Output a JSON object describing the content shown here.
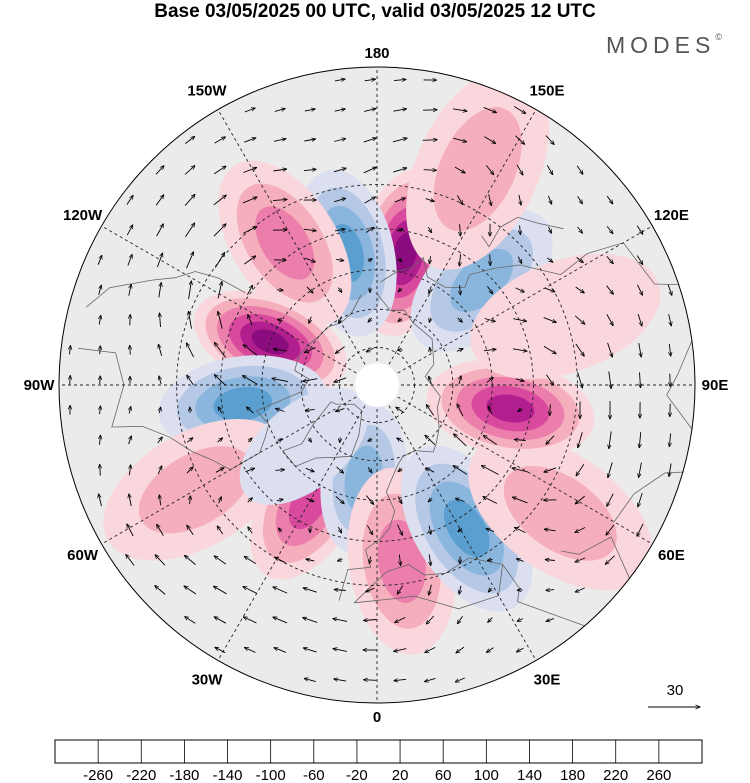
{
  "title": "Base 03/05/2025 00 UTC, valid 03/05/2025 12 UTC",
  "brand": "MODES",
  "brand_mark": "©",
  "map": {
    "projection": "north-polar-stereographic",
    "longitude_labels": [
      {
        "text": "180",
        "lon": 180
      },
      {
        "text": "150E",
        "lon": 150
      },
      {
        "text": "120E",
        "lon": 120
      },
      {
        "text": "90E",
        "lon": 90
      },
      {
        "text": "60E",
        "lon": 60
      },
      {
        "text": "30E",
        "lon": 30
      },
      {
        "text": "0",
        "lon": 0
      },
      {
        "text": "30W",
        "lon": -30
      },
      {
        "text": "60W",
        "lon": -60
      },
      {
        "text": "90W",
        "lon": -90
      },
      {
        "text": "120W",
        "lon": -120
      },
      {
        "text": "150W",
        "lon": -150
      }
    ],
    "latitude_circles": [
      80,
      70,
      60,
      50,
      40
    ],
    "anomaly_centers": [
      {
        "lon": 168,
        "lat": 55,
        "value": 240
      },
      {
        "lon": -167,
        "lat": 55,
        "value": -170
      },
      {
        "lon": -147,
        "lat": 47,
        "value": 130
      },
      {
        "lon": -112,
        "lat": 60,
        "value": 230
      },
      {
        "lon": -82,
        "lat": 55,
        "value": -150
      },
      {
        "lon": -60,
        "lat": 38,
        "value": 90
      },
      {
        "lon": -30,
        "lat": 55,
        "value": 170
      },
      {
        "lon": -8,
        "lat": 65,
        "value": -120
      },
      {
        "lon": 8,
        "lat": 45,
        "value": 130
      },
      {
        "lon": 32,
        "lat": 47,
        "value": -140
      },
      {
        "lon": 55,
        "lat": 35,
        "value": 80
      },
      {
        "lon": 80,
        "lat": 55,
        "value": 180
      },
      {
        "lon": 135,
        "lat": 52,
        "value": -110
      },
      {
        "lon": 110,
        "lat": 40,
        "value": 50
      },
      {
        "lon": -50,
        "lat": 65,
        "value": -40
      },
      {
        "lon": 155,
        "lat": 32,
        "value": 60
      }
    ],
    "vector_reference": {
      "label": "30",
      "magnitude": 30
    }
  },
  "colorbar": {
    "ticks": [
      "-260",
      "-220",
      "-180",
      "-140",
      "-100",
      "-60",
      "-20",
      "20",
      "60",
      "100",
      "140",
      "180",
      "220",
      "260"
    ],
    "colors": [
      "#0e3a5c",
      "#175d8c",
      "#2f7db5",
      "#5a9fd0",
      "#8ab6de",
      "#b5c8e6",
      "#dcdff0",
      "#ffffff",
      "#fad7dc",
      "#f5aebc",
      "#ec7eac",
      "#d94a9e",
      "#b11e8e",
      "#8a0c7e",
      "#5a0a6a"
    ]
  }
}
